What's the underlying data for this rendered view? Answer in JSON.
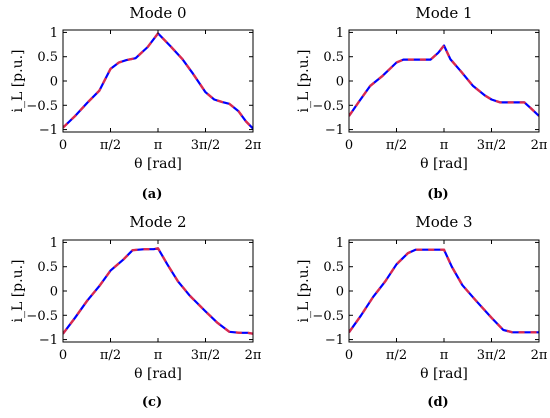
{
  "chart_data": [
    {
      "type": "line",
      "title": "Mode 0",
      "caption": "(a)",
      "xlabel": "θ [rad]",
      "ylabel": "i_L [p.u.]",
      "xlim": [
        0,
        6.2832
      ],
      "ylim": [
        -1.05,
        1.05
      ],
      "xticks": [
        0,
        1.5708,
        3.1416,
        4.7124,
        6.2832
      ],
      "xticklabels": [
        "0",
        "π/2",
        "π",
        "3π/2",
        "2π"
      ],
      "yticks": [
        -1,
        -0.5,
        0,
        0.5,
        1
      ],
      "yticklabels": [
        "−1",
        "−0.5",
        "0",
        "0.5",
        "1"
      ],
      "series": [
        {
          "color": "#0000ff",
          "style": "solid",
          "x": [
            0,
            0.4,
            0.8,
            1.2,
            1.5708,
            1.85,
            2.1,
            2.4,
            2.8,
            3.1416,
            3.55,
            3.95,
            4.3,
            4.7124,
            5.0,
            5.25,
            5.5,
            5.8,
            6.05,
            6.2832
          ],
          "y": [
            -0.96,
            -0.72,
            -0.45,
            -0.2,
            0.25,
            0.38,
            0.43,
            0.47,
            0.7,
            0.98,
            0.72,
            0.45,
            0.15,
            -0.23,
            -0.38,
            -0.43,
            -0.47,
            -0.62,
            -0.83,
            -0.98
          ]
        },
        {
          "color": "#ff3030",
          "style": "dashed",
          "x": [
            0,
            0.4,
            0.8,
            1.2,
            1.5708,
            1.85,
            2.1,
            2.4,
            2.8,
            3.1416,
            3.55,
            3.95,
            4.3,
            4.7124,
            5.0,
            5.25,
            5.5,
            5.8,
            6.05,
            6.2832
          ],
          "y": [
            -0.96,
            -0.72,
            -0.45,
            -0.2,
            0.25,
            0.38,
            0.43,
            0.47,
            0.7,
            0.98,
            0.72,
            0.45,
            0.15,
            -0.23,
            -0.38,
            -0.43,
            -0.47,
            -0.62,
            -0.83,
            -0.98
          ]
        }
      ]
    },
    {
      "type": "line",
      "title": "Mode 1",
      "caption": "(b)",
      "xlabel": "θ [rad]",
      "ylabel": "i_L [p.u.]",
      "xlim": [
        0,
        6.2832
      ],
      "ylim": [
        -1.05,
        1.05
      ],
      "xticks": [
        0,
        1.5708,
        3.1416,
        4.7124,
        6.2832
      ],
      "xticklabels": [
        "0",
        "π/2",
        "π",
        "3π/2",
        "2π"
      ],
      "yticks": [
        -1,
        -0.5,
        0,
        0.5,
        1
      ],
      "yticklabels": [
        "−1",
        "−0.5",
        "0",
        "0.5",
        "1"
      ],
      "series": [
        {
          "color": "#0000ff",
          "style": "solid",
          "x": [
            0,
            0.3,
            0.7,
            1.1,
            1.5708,
            1.8,
            2.3,
            2.7,
            2.95,
            3.1416,
            3.35,
            3.7,
            4.1,
            4.5,
            4.7124,
            5.0,
            5.5,
            5.8,
            6.05,
            6.2832
          ],
          "y": [
            -0.72,
            -0.45,
            -0.1,
            0.1,
            0.38,
            0.44,
            0.44,
            0.44,
            0.58,
            0.73,
            0.45,
            0.2,
            -0.1,
            -0.3,
            -0.38,
            -0.44,
            -0.44,
            -0.44,
            -0.58,
            -0.72
          ]
        },
        {
          "color": "#ff3030",
          "style": "dashed",
          "x": [
            0,
            0.3,
            0.7,
            1.1,
            1.5708,
            1.8,
            2.3,
            2.7,
            2.95,
            3.1416,
            3.35,
            3.7,
            4.1,
            4.5,
            4.7124,
            5.0,
            5.5,
            5.8,
            6.05,
            6.2832
          ],
          "y": [
            -0.72,
            -0.45,
            -0.1,
            0.1,
            0.38,
            0.44,
            0.44,
            0.44,
            0.58,
            0.73,
            0.45,
            0.2,
            -0.1,
            -0.3,
            -0.38,
            -0.44,
            -0.44,
            -0.44,
            -0.58,
            -0.72
          ]
        }
      ]
    },
    {
      "type": "line",
      "title": "Mode 2",
      "caption": "(c)",
      "xlabel": "θ [rad]",
      "ylabel": "i_L [p.u.]",
      "xlim": [
        0,
        6.2832
      ],
      "ylim": [
        -1.05,
        1.05
      ],
      "xticks": [
        0,
        1.5708,
        3.1416,
        4.7124,
        6.2832
      ],
      "xticklabels": [
        "0",
        "π/2",
        "π",
        "3π/2",
        "2π"
      ],
      "yticks": [
        -1,
        -0.5,
        0,
        0.5,
        1
      ],
      "yticklabels": [
        "−1",
        "−0.5",
        "0",
        "0.5",
        "1"
      ],
      "series": [
        {
          "color": "#0000ff",
          "style": "solid",
          "x": [
            0,
            0.4,
            0.8,
            1.2,
            1.5708,
            2.0,
            2.3,
            2.7,
            3.0,
            3.1416,
            3.45,
            3.8,
            4.2,
            4.7124,
            5.1,
            5.5,
            5.85,
            6.1,
            6.2832
          ],
          "y": [
            -0.88,
            -0.55,
            -0.2,
            0.1,
            0.42,
            0.65,
            0.84,
            0.86,
            0.86,
            0.88,
            0.55,
            0.2,
            -0.1,
            -0.42,
            -0.65,
            -0.84,
            -0.86,
            -0.86,
            -0.88
          ]
        },
        {
          "color": "#ff3030",
          "style": "dashed",
          "x": [
            0,
            0.4,
            0.8,
            1.2,
            1.5708,
            2.0,
            2.3,
            2.7,
            3.0,
            3.1416,
            3.45,
            3.8,
            4.2,
            4.7124,
            5.1,
            5.5,
            5.85,
            6.1,
            6.2832
          ],
          "y": [
            -0.88,
            -0.55,
            -0.2,
            0.1,
            0.42,
            0.65,
            0.84,
            0.86,
            0.86,
            0.88,
            0.55,
            0.2,
            -0.1,
            -0.42,
            -0.65,
            -0.84,
            -0.86,
            -0.86,
            -0.88
          ]
        }
      ]
    },
    {
      "type": "line",
      "title": "Mode 3",
      "caption": "(d)",
      "xlabel": "θ [rad]",
      "ylabel": "i_L [p.u.]",
      "xlim": [
        0,
        6.2832
      ],
      "ylim": [
        -1.05,
        1.05
      ],
      "xticks": [
        0,
        1.5708,
        3.1416,
        4.7124,
        6.2832
      ],
      "xticklabels": [
        "0",
        "π/2",
        "π",
        "3π/2",
        "2π"
      ],
      "yticks": [
        -1,
        -0.5,
        0,
        0.5,
        1
      ],
      "yticklabels": [
        "−1",
        "−0.5",
        "0",
        "0.5",
        "1"
      ],
      "series": [
        {
          "color": "#0000ff",
          "style": "solid",
          "x": [
            0,
            0.4,
            0.8,
            1.2,
            1.5708,
            1.95,
            2.2,
            2.7,
            3.1416,
            3.4,
            3.75,
            4.2,
            4.7124,
            5.1,
            5.4,
            5.9,
            6.2832
          ],
          "y": [
            -0.85,
            -0.5,
            -0.12,
            0.2,
            0.55,
            0.78,
            0.85,
            0.85,
            0.85,
            0.5,
            0.12,
            -0.2,
            -0.55,
            -0.8,
            -0.85,
            -0.85,
            -0.85
          ]
        },
        {
          "color": "#ff3030",
          "style": "dashed",
          "x": [
            0,
            0.4,
            0.8,
            1.2,
            1.5708,
            1.95,
            2.2,
            2.7,
            3.1416,
            3.4,
            3.75,
            4.2,
            4.7124,
            5.1,
            5.4,
            5.9,
            6.2832
          ],
          "y": [
            -0.85,
            -0.5,
            -0.12,
            0.2,
            0.55,
            0.78,
            0.85,
            0.85,
            0.85,
            0.5,
            0.12,
            -0.2,
            -0.55,
            -0.8,
            -0.85,
            -0.85,
            -0.85
          ]
        }
      ]
    }
  ]
}
